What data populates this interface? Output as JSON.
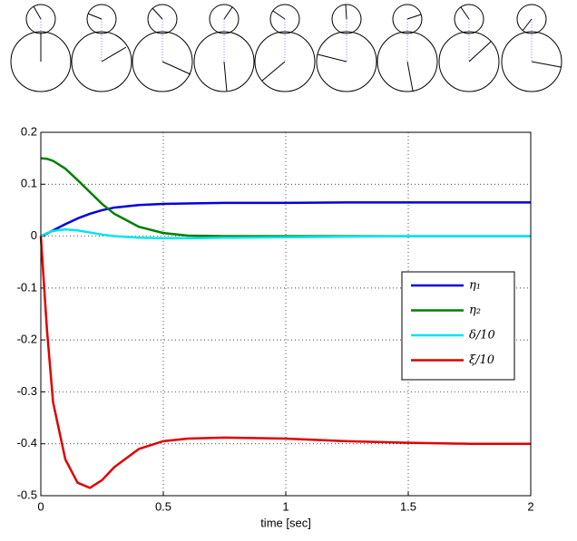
{
  "chart_data": {
    "type": "line",
    "x_label": "time [sec]",
    "x": [
      0,
      0.025,
      0.05,
      0.1,
      0.15,
      0.2,
      0.25,
      0.3,
      0.4,
      0.5,
      0.6,
      0.75,
      1,
      1.25,
      1.5,
      1.75,
      2
    ],
    "series": [
      {
        "name": "η₁",
        "color": "#0000e0",
        "values": [
          0,
          0.005,
          0.011,
          0.023,
          0.034,
          0.043,
          0.05,
          0.055,
          0.06,
          0.062,
          0.063,
          0.064,
          0.064,
          0.065,
          0.065,
          0.065,
          0.065
        ]
      },
      {
        "name": "η₂",
        "color": "#007f00",
        "values": [
          0.15,
          0.149,
          0.145,
          0.13,
          0.108,
          0.085,
          0.062,
          0.043,
          0.018,
          0.006,
          0.001,
          0,
          0,
          0,
          0,
          0,
          0
        ]
      },
      {
        "name": "δ/10",
        "color": "#00e5ee",
        "values": [
          0,
          0.006,
          0.01,
          0.013,
          0.011,
          0.007,
          0.003,
          0,
          -0.003,
          -0.004,
          -0.004,
          -0.003,
          -0.002,
          -0.001,
          0,
          0,
          0
        ]
      },
      {
        "name": "ξ/10",
        "color": "#e00000",
        "values": [
          0,
          -0.18,
          -0.32,
          -0.43,
          -0.475,
          -0.485,
          -0.47,
          -0.445,
          -0.41,
          -0.395,
          -0.39,
          -0.388,
          -0.39,
          -0.395,
          -0.398,
          -0.4,
          -0.4
        ]
      }
    ],
    "xlim": [
      0,
      2
    ],
    "xticks": [
      0,
      0.5,
      1,
      1.5,
      2
    ],
    "ylim": [
      -0.5,
      0.2
    ],
    "yticks": [
      -0.5,
      -0.4,
      -0.3,
      -0.2,
      -0.1,
      0,
      0.1,
      0.2
    ],
    "grid": true,
    "legend": "center right"
  }
}
